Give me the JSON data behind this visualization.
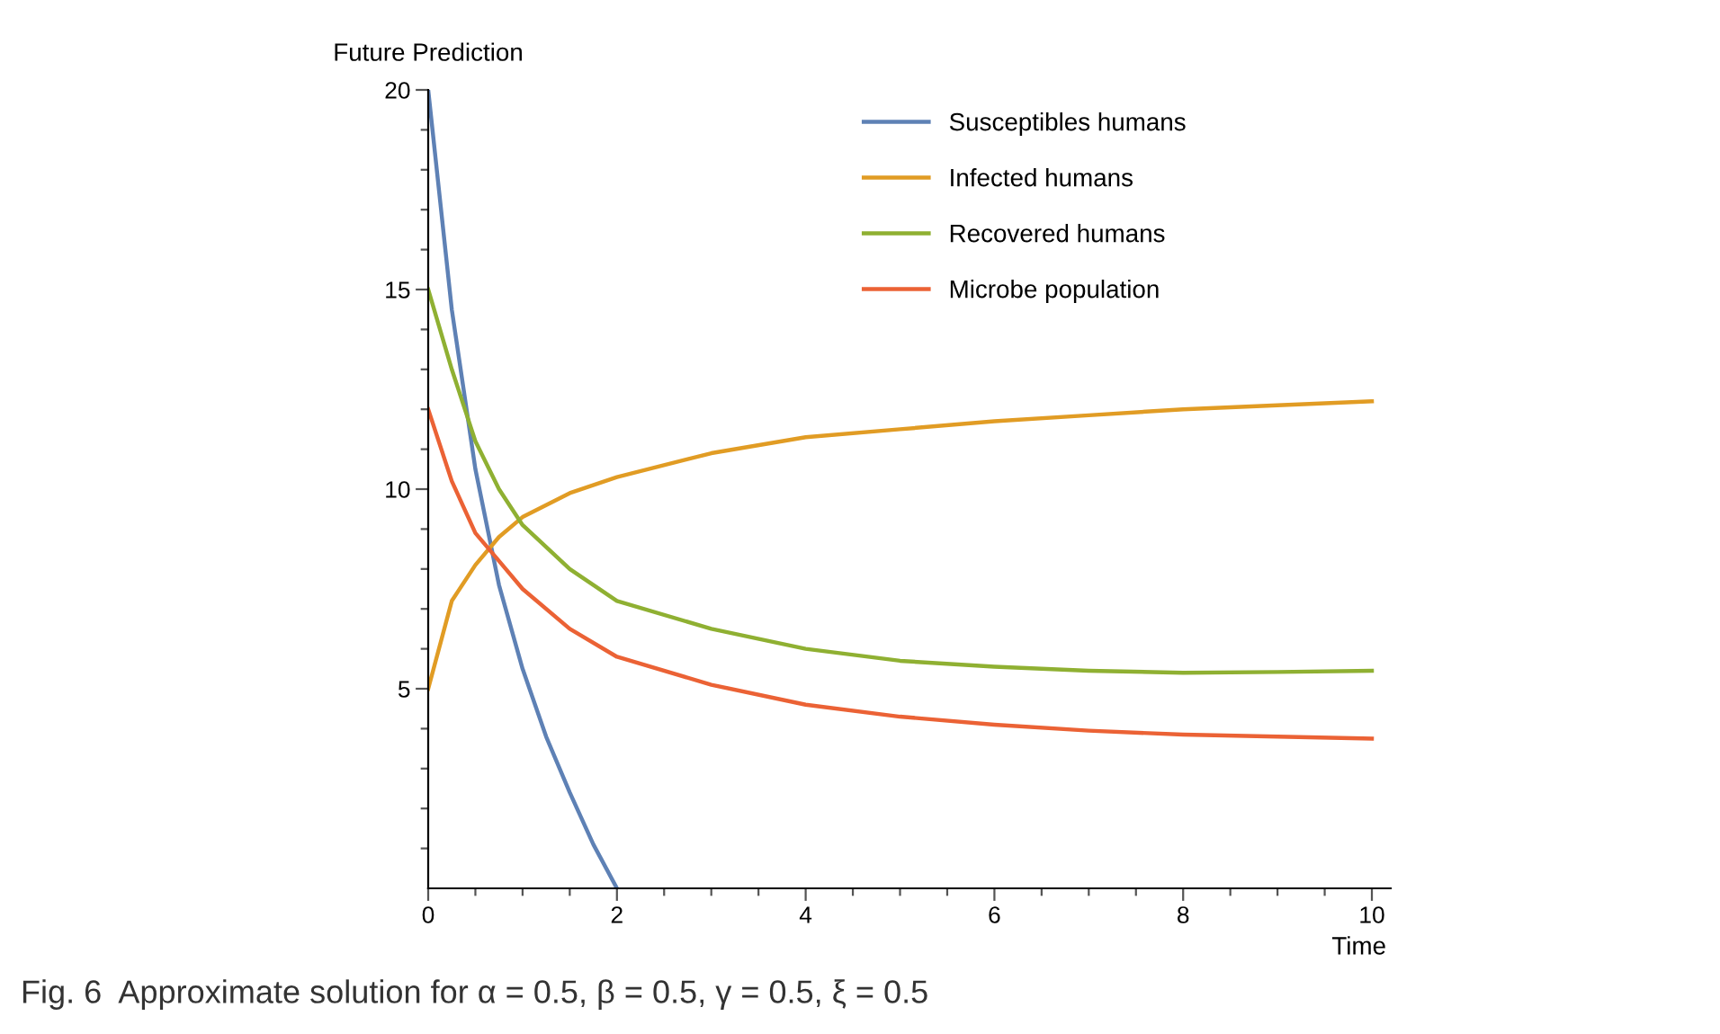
{
  "chart_data": {
    "type": "line",
    "ylabel": "Future Prediction",
    "xlabel": "Time",
    "annotations": [
      "Fig. 6  Approximate solution for α = 0.5, β = 0.5, γ = 0.5, ξ = 0.5"
    ],
    "xlim": [
      0,
      10.2
    ],
    "ylim": [
      0,
      20
    ],
    "xticks": [
      0,
      {
        "value": 0.5,
        "label": null
      },
      {
        "value": 1,
        "label": null
      },
      {
        "value": 1.5,
        "label": null
      },
      2,
      {
        "value": 2.5,
        "label": null
      },
      {
        "value": 3,
        "label": null
      },
      {
        "value": 3.5,
        "label": null
      },
      4,
      {
        "value": 4.5,
        "label": null
      },
      {
        "value": 5,
        "label": null
      },
      {
        "value": 5.5,
        "label": null
      },
      6,
      {
        "value": 6.5,
        "label": null
      },
      {
        "value": 7,
        "label": null
      },
      {
        "value": 7.5,
        "label": null
      },
      8,
      {
        "value": 8.5,
        "label": null
      },
      {
        "value": 9,
        "label": null
      },
      {
        "value": 9.5,
        "label": null
      },
      10
    ],
    "yticks": [
      {
        "value": 1,
        "label": null
      },
      {
        "value": 2,
        "label": null
      },
      {
        "value": 3,
        "label": null
      },
      {
        "value": 4,
        "label": null
      },
      5,
      {
        "value": 6,
        "label": null
      },
      {
        "value": 7,
        "label": null
      },
      {
        "value": 8,
        "label": null
      },
      {
        "value": 9,
        "label": null
      },
      10,
      {
        "value": 11,
        "label": null
      },
      {
        "value": 12,
        "label": null
      },
      {
        "value": 13,
        "label": null
      },
      {
        "value": 14,
        "label": null
      },
      15,
      {
        "value": 16,
        "label": null
      },
      {
        "value": 17,
        "label": null
      },
      {
        "value": 18,
        "label": null
      },
      {
        "value": 19,
        "label": null
      },
      20
    ],
    "grid": false,
    "legend": "top",
    "marker": "none",
    "line_style": "solid",
    "series": [
      {
        "name": "Susceptibles humans",
        "color": "#5e81b5",
        "x": [
          0,
          0.25,
          0.5,
          0.75,
          1,
          1.25,
          1.5,
          1.75,
          2
        ],
        "values": [
          20,
          14.5,
          10.5,
          7.6,
          5.5,
          3.8,
          2.4,
          1.1,
          0
        ]
      },
      {
        "name": "Infected humans",
        "color": "#e19c24",
        "x": [
          0,
          0.25,
          0.5,
          0.75,
          1,
          1.5,
          2,
          3,
          4,
          5,
          6,
          7,
          8,
          9,
          10
        ],
        "values": [
          5,
          7.2,
          8.1,
          8.8,
          9.3,
          9.9,
          10.3,
          10.9,
          11.3,
          11.5,
          11.7,
          11.85,
          12.0,
          12.1,
          12.2
        ]
      },
      {
        "name": "Recovered humans",
        "color": "#8fb032",
        "x": [
          0,
          0.25,
          0.5,
          0.75,
          1,
          1.5,
          2,
          3,
          4,
          5,
          6,
          7,
          8,
          9,
          10
        ],
        "values": [
          15,
          13,
          11.2,
          10,
          9.1,
          8.0,
          7.2,
          6.5,
          6.0,
          5.7,
          5.55,
          5.45,
          5.4,
          5.42,
          5.45
        ]
      },
      {
        "name": "Microbe population",
        "color": "#eb6235",
        "x": [
          0,
          0.25,
          0.5,
          0.75,
          1,
          1.5,
          2,
          3,
          4,
          5,
          6,
          7,
          8,
          9,
          10
        ],
        "values": [
          12,
          10.2,
          8.9,
          8.2,
          7.5,
          6.5,
          5.8,
          5.1,
          4.6,
          4.3,
          4.1,
          3.95,
          3.85,
          3.8,
          3.75
        ]
      }
    ]
  }
}
